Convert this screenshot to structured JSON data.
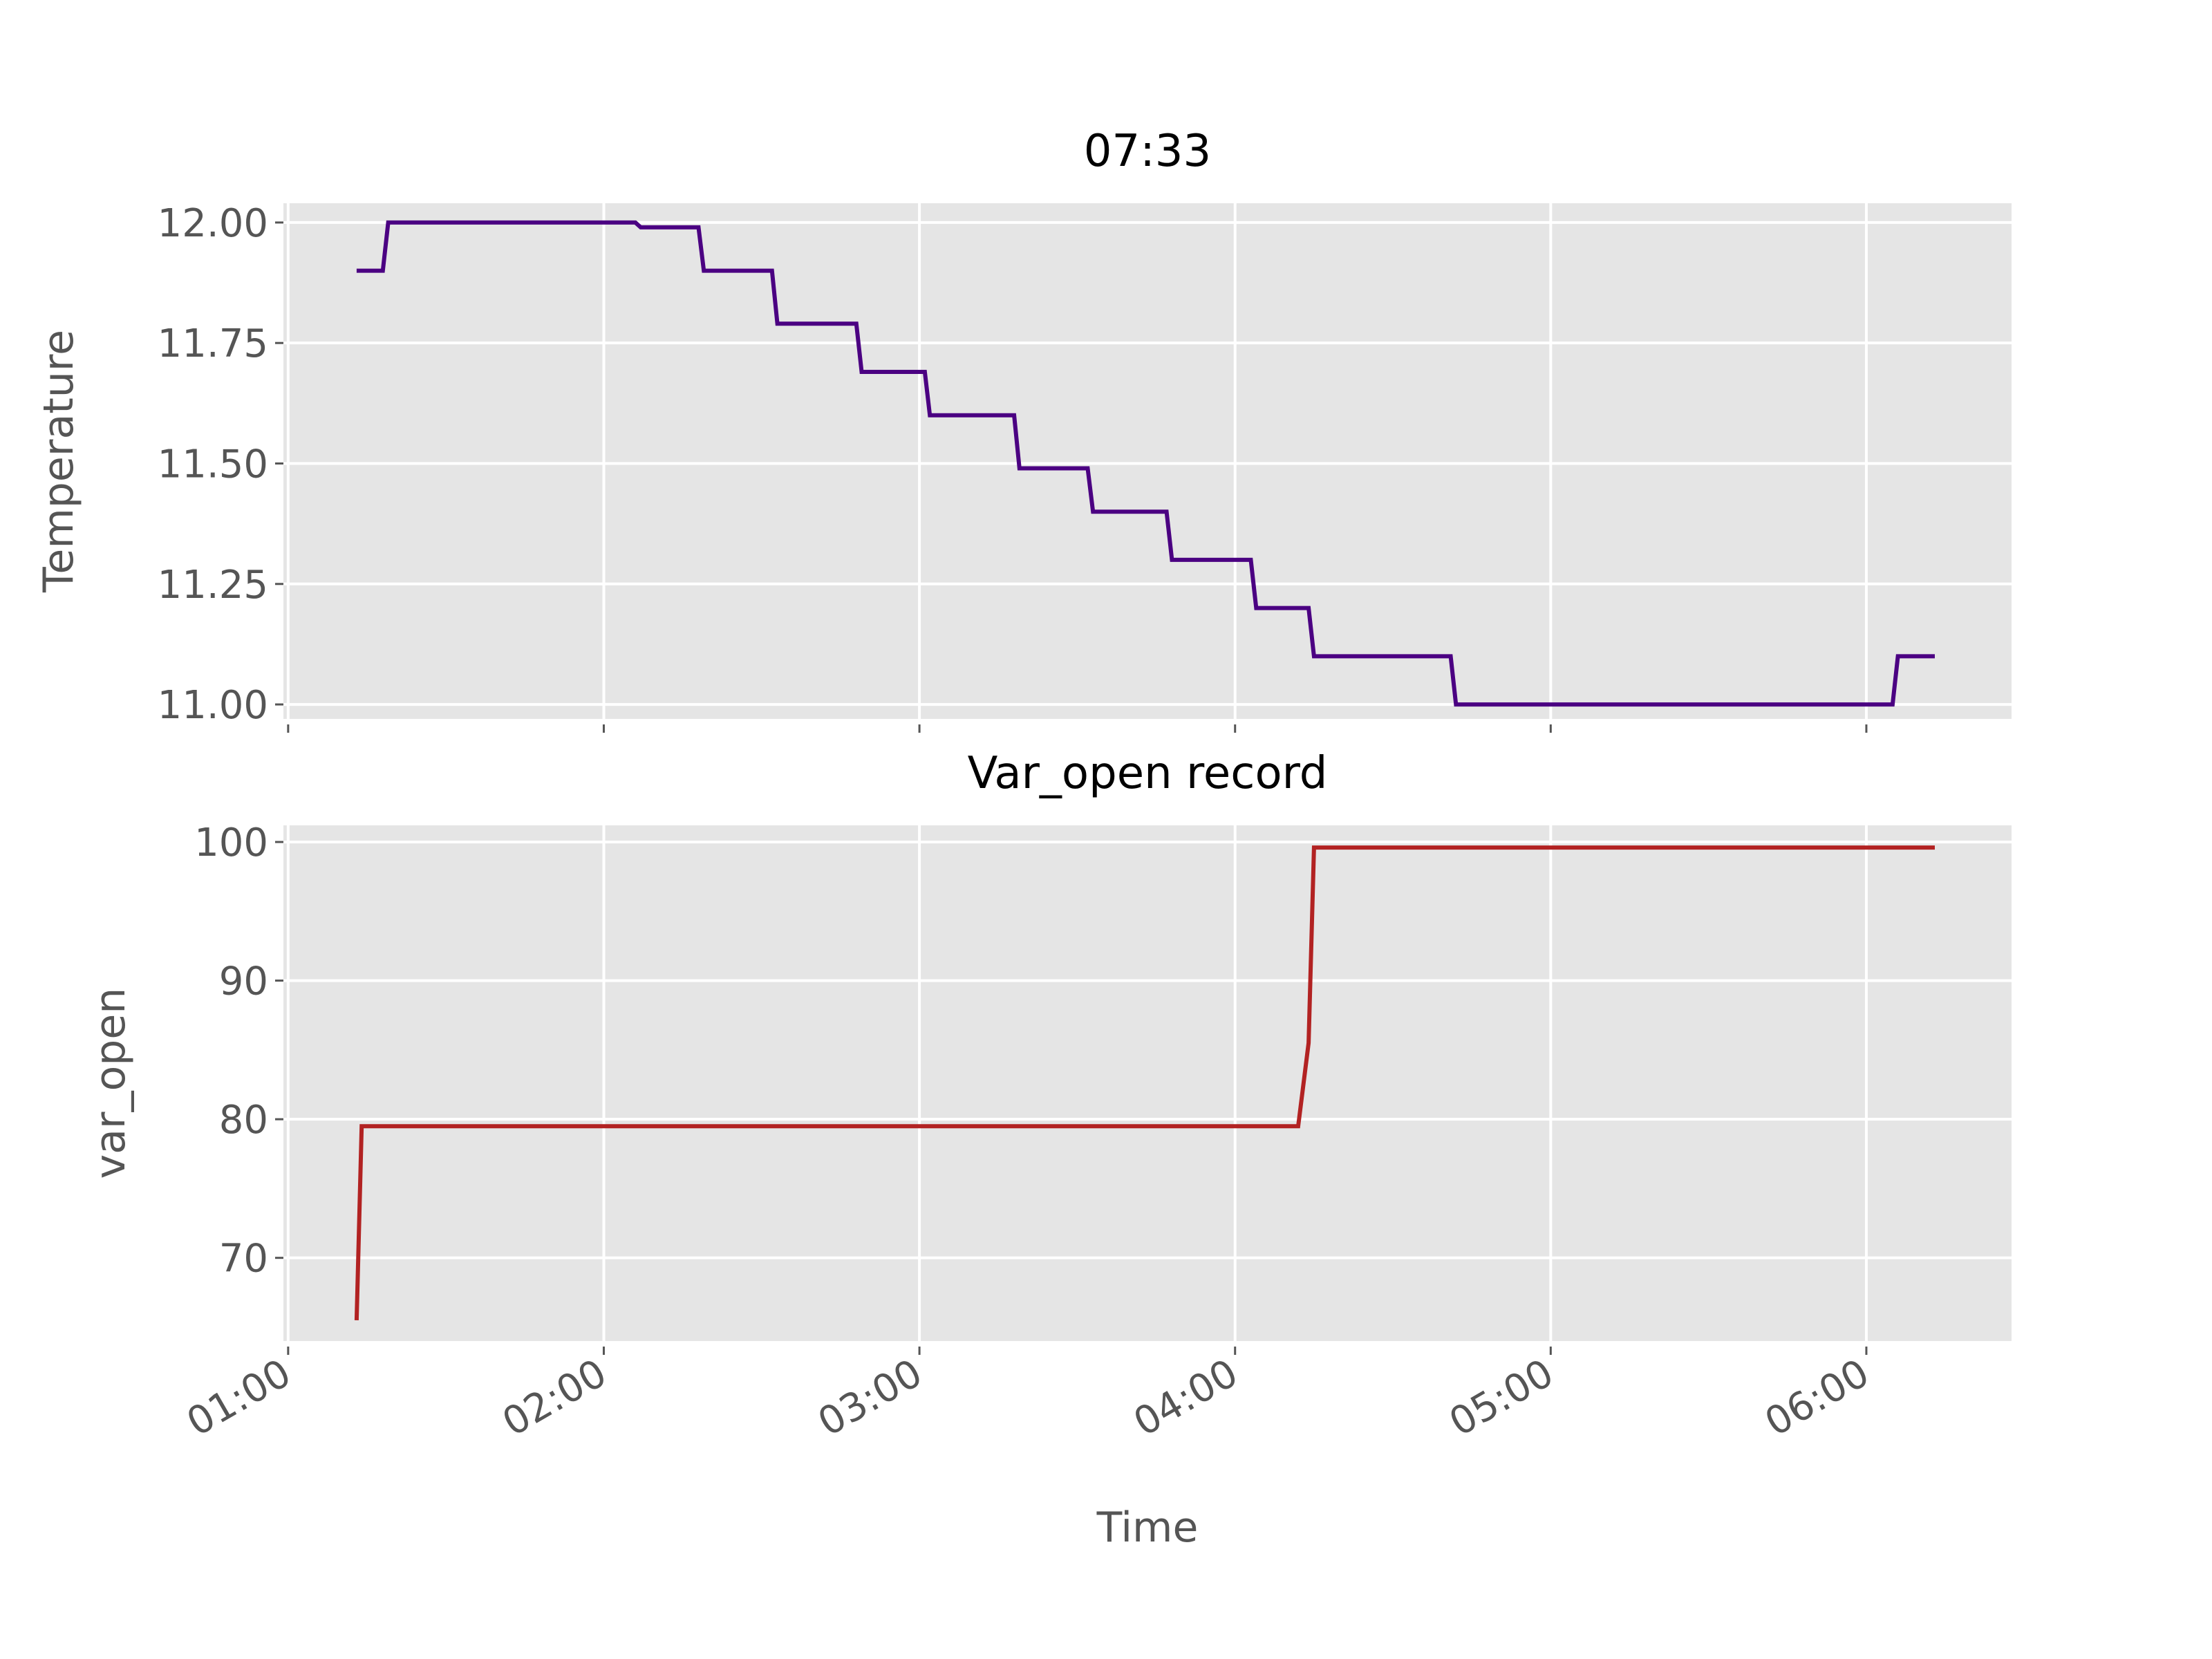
{
  "chart_data": [
    {
      "type": "line",
      "title": "07:33",
      "ylabel": "Temperature",
      "xlabel": "",
      "ylim": [
        10.97,
        12.04
      ],
      "yticks": [
        11.0,
        11.25,
        11.5,
        11.75,
        12.0
      ],
      "ytick_labels": [
        "11.00",
        "11.25",
        "11.50",
        "11.75",
        "12.00"
      ],
      "xticks": [
        "01:00",
        "02:00",
        "03:00",
        "04:00",
        "05:00",
        "06:00"
      ],
      "show_xtick_labels": false,
      "x_unit": "clock time (hours, fractional)",
      "xlim": [
        0.985,
        6.46
      ],
      "grid": true,
      "color": "#4b0082",
      "series": [
        {
          "x": [
            1.217,
            1.267,
            1.275,
            1.3,
            1.317,
            2.1,
            2.117,
            2.3,
            2.317,
            2.533,
            2.55,
            2.8,
            2.817,
            3.017,
            3.033,
            3.3,
            3.317,
            3.533,
            3.55,
            3.783,
            3.8,
            4.05,
            4.067,
            4.233,
            4.25,
            4.683,
            4.7,
            5.15,
            5.167,
            6.083,
            6.1,
            6.217
          ],
          "y": [
            11.9,
            11.9,
            11.9,
            11.9,
            12.0,
            12.0,
            11.99,
            11.99,
            11.9,
            11.9,
            11.79,
            11.79,
            11.69,
            11.69,
            11.6,
            11.6,
            11.49,
            11.49,
            11.4,
            11.4,
            11.3,
            11.3,
            11.2,
            11.2,
            11.1,
            11.1,
            11.0,
            11.0,
            11.0,
            11.0,
            11.1,
            11.1
          ]
        }
      ]
    },
    {
      "type": "line",
      "title": "Var_open record",
      "ylabel": "var_open",
      "xlabel": "Time",
      "ylim": [
        64,
        101.2
      ],
      "yticks": [
        70,
        80,
        90,
        100
      ],
      "ytick_labels": [
        "70",
        "80",
        "90",
        "100"
      ],
      "xticks": [
        "01:00",
        "02:00",
        "03:00",
        "04:00",
        "05:00",
        "06:00"
      ],
      "show_xtick_labels": true,
      "x_unit": "clock time (hours, fractional)",
      "xlim": [
        0.985,
        6.46
      ],
      "grid": true,
      "color": "#b22222",
      "series": [
        {
          "x": [
            1.217,
            1.233,
            4.2,
            4.233,
            4.25,
            6.217
          ],
          "y": [
            65.5,
            79.5,
            79.5,
            85.5,
            99.6,
            99.6
          ]
        }
      ]
    }
  ]
}
